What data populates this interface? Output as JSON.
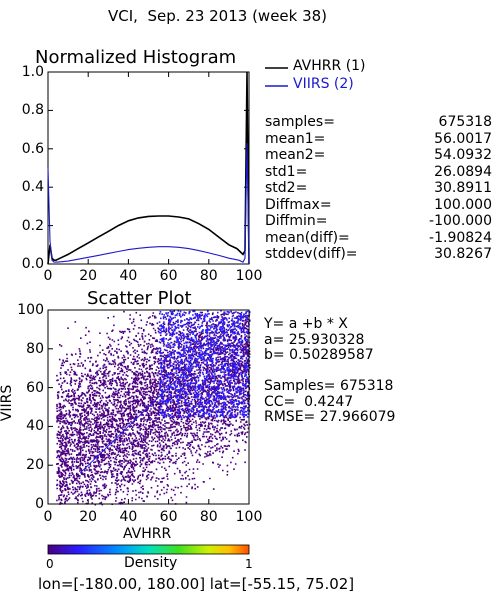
{
  "header": {
    "title": "VCI,  Sep. 23 2013 (week 38)"
  },
  "histogram": {
    "title": "Normalized Histogram",
    "legend": [
      {
        "name": "AVHRR (1)",
        "color": "#000000"
      },
      {
        "name": "VIIRS (2)",
        "color": "#1a1acc"
      }
    ]
  },
  "stats": [
    {
      "label": "samples=",
      "value": "675318"
    },
    {
      "label": "mean1=",
      "value": "56.0017"
    },
    {
      "label": "mean2=",
      "value": "54.0932"
    },
    {
      "label": "std1=",
      "value": "26.0894"
    },
    {
      "label": "std2=",
      "value": "30.8911"
    },
    {
      "label": "Diffmax=",
      "value": "100.000"
    },
    {
      "label": "Diffmin=",
      "value": "-100.000"
    },
    {
      "label": "mean(diff)=",
      "value": "-1.90824"
    },
    {
      "label": "stddev(diff)=",
      "value": "30.8267"
    }
  ],
  "scatter": {
    "title": "Scatter Plot",
    "fit_lines": [
      "Y= a +b * X",
      "a= 25.930328",
      "b= 0.50289587",
      "",
      "Samples= 675318",
      "CC=  0.4247",
      "RMSE= 27.966079"
    ]
  },
  "colorbar": {
    "label": "Density",
    "min_label": "0",
    "max_label": "1"
  },
  "footer": {
    "range_text": "lon=[-180.00, 180.00] lat=[-55.15, 75.02]"
  },
  "chart_data": [
    {
      "type": "line",
      "title": "Normalized Histogram",
      "xlim": [
        0,
        100
      ],
      "ylim": [
        0,
        1
      ],
      "x_ticks": [
        0,
        20,
        40,
        60,
        80,
        100
      ],
      "y_ticks": [
        0.0,
        0.2,
        0.4,
        0.6,
        0.8,
        1.0
      ],
      "y_tick_labels": [
        "0.0",
        "0.2",
        "0.4",
        "0.6",
        "0.8",
        "1.0"
      ],
      "grid": false,
      "legend_position": "right",
      "series": [
        {
          "name": "AVHRR (1)",
          "color": "#000000",
          "x": [
            0,
            1,
            2,
            3,
            4,
            6,
            10,
            15,
            20,
            25,
            30,
            35,
            40,
            45,
            50,
            55,
            60,
            65,
            70,
            75,
            80,
            85,
            90,
            94,
            96,
            97,
            98,
            99,
            100
          ],
          "y": [
            0.0,
            0.1,
            0.03,
            0.02,
            0.02,
            0.03,
            0.05,
            0.08,
            0.11,
            0.14,
            0.17,
            0.2,
            0.225,
            0.24,
            0.248,
            0.25,
            0.25,
            0.245,
            0.235,
            0.21,
            0.18,
            0.14,
            0.1,
            0.08,
            0.06,
            0.05,
            0.07,
            1.0,
            0.0
          ]
        },
        {
          "name": "VIIRS (2)",
          "color": "#1a1acc",
          "x": [
            0,
            1,
            2,
            3,
            5,
            10,
            15,
            20,
            25,
            30,
            35,
            40,
            45,
            50,
            55,
            60,
            65,
            70,
            75,
            80,
            85,
            90,
            95,
            97,
            98,
            99,
            100
          ],
          "y": [
            0.5,
            0.12,
            0.02,
            0.01,
            0.01,
            0.015,
            0.025,
            0.035,
            0.045,
            0.055,
            0.065,
            0.075,
            0.082,
            0.087,
            0.09,
            0.09,
            0.087,
            0.08,
            0.07,
            0.058,
            0.045,
            0.03,
            0.02,
            0.01,
            0.03,
            0.63,
            0.0
          ]
        }
      ]
    },
    {
      "type": "scatter",
      "title": "Scatter Plot",
      "xlabel": "AVHRR",
      "ylabel": "VIIRS",
      "xlim": [
        0,
        100
      ],
      "ylim": [
        0,
        100
      ],
      "x_ticks": [
        0,
        20,
        40,
        60,
        80,
        100
      ],
      "y_ticks": [
        0,
        20,
        40,
        60,
        80,
        100
      ],
      "fit": {
        "a": 25.930328,
        "b": 0.50289587
      },
      "identity_line_color": "#2222ee",
      "density_colors": [
        "#4b0082",
        "#2a1cff",
        "#0080ff",
        "#00e0e0",
        "#00e060",
        "#90ff00",
        "#ffd000",
        "#ff6000"
      ]
    }
  ]
}
